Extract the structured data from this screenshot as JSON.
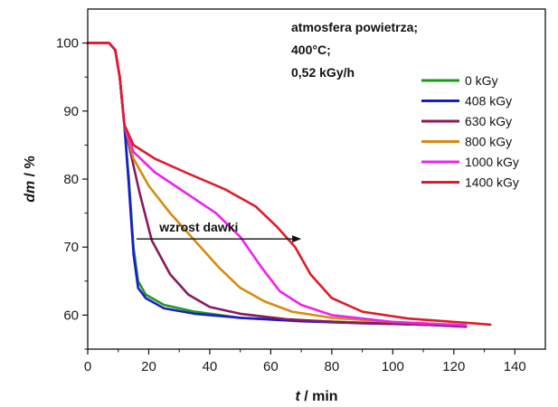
{
  "chart_data": {
    "type": "line",
    "xlabel_italic": "t",
    "xlabel_rest": " / min",
    "ylabel_italic": "dm",
    "ylabel_rest": " / %",
    "xlim": [
      0,
      150
    ],
    "ylim": [
      55,
      105
    ],
    "xticks": [
      0,
      20,
      40,
      60,
      80,
      100,
      120,
      140
    ],
    "yticks": [
      60,
      70,
      80,
      90,
      100
    ],
    "grid": false,
    "legend_position": "right",
    "annotation_lines": [
      "atmosfera powietrza;",
      "400°C;",
      "0,52 kGy/h"
    ],
    "arrow_label": "wzrost dawki",
    "arrow": {
      "x_start": 16,
      "x_end": 70,
      "y": 71.2
    },
    "series": [
      {
        "name": "0 kGy",
        "color": "#1a9a1a",
        "x": [
          0,
          7,
          9,
          10.5,
          12,
          13.5,
          15,
          16.5,
          19,
          25,
          35,
          50,
          70,
          90,
          110,
          124
        ],
        "y": [
          100,
          100,
          99,
          95,
          88,
          80,
          70,
          65,
          63,
          61.5,
          60.5,
          59.6,
          59.2,
          58.9,
          58.6,
          58.4
        ]
      },
      {
        "name": "408 kGy",
        "color": "#1a1ad0",
        "x": [
          0,
          7,
          9,
          10.5,
          12,
          13.5,
          15,
          16.5,
          19,
          25,
          35,
          50,
          70,
          90,
          110,
          124
        ],
        "y": [
          100,
          100,
          99,
          95,
          88,
          79,
          69,
          64,
          62.5,
          61,
          60.2,
          59.6,
          59.1,
          58.8,
          58.6,
          58.3
        ]
      },
      {
        "name": "630 kGy",
        "color": "#8a1a5a",
        "x": [
          0,
          7,
          9,
          10.5,
          12,
          14,
          17,
          21,
          27,
          33,
          40,
          50,
          65,
          85,
          110,
          124
        ],
        "y": [
          100,
          100,
          99,
          95,
          88,
          84,
          78,
          71,
          66,
          63,
          61.2,
          60.2,
          59.4,
          58.9,
          58.6,
          58.4
        ]
      },
      {
        "name": "800 kGy",
        "color": "#d88a10",
        "x": [
          0,
          7,
          9,
          10.5,
          12,
          15,
          20,
          27,
          35,
          43,
          50,
          58,
          67,
          80,
          100,
          124
        ],
        "y": [
          100,
          100,
          99,
          95,
          88,
          83,
          79,
          75,
          71,
          67,
          64,
          62,
          60.5,
          59.6,
          59,
          58.5
        ]
      },
      {
        "name": "1000 kGy",
        "color": "#ee22ee",
        "x": [
          0,
          7,
          9,
          10.5,
          12,
          15,
          22,
          32,
          42,
          50,
          57,
          63,
          70,
          80,
          100,
          124
        ],
        "y": [
          100,
          100,
          99,
          95,
          88,
          84,
          81,
          78,
          75,
          71.5,
          67,
          63.5,
          61.5,
          60,
          59,
          58.5
        ]
      },
      {
        "name": "1400 kGy",
        "color": "#e01a2a",
        "x": [
          0,
          7,
          9,
          10.5,
          12,
          15,
          22,
          32,
          45,
          55,
          62,
          68,
          73,
          80,
          90,
          105,
          120,
          132
        ],
        "y": [
          100,
          100,
          99,
          95,
          88,
          85,
          83,
          81,
          78.5,
          76,
          73,
          70,
          66,
          62.5,
          60.5,
          59.5,
          59,
          58.6
        ]
      }
    ]
  }
}
